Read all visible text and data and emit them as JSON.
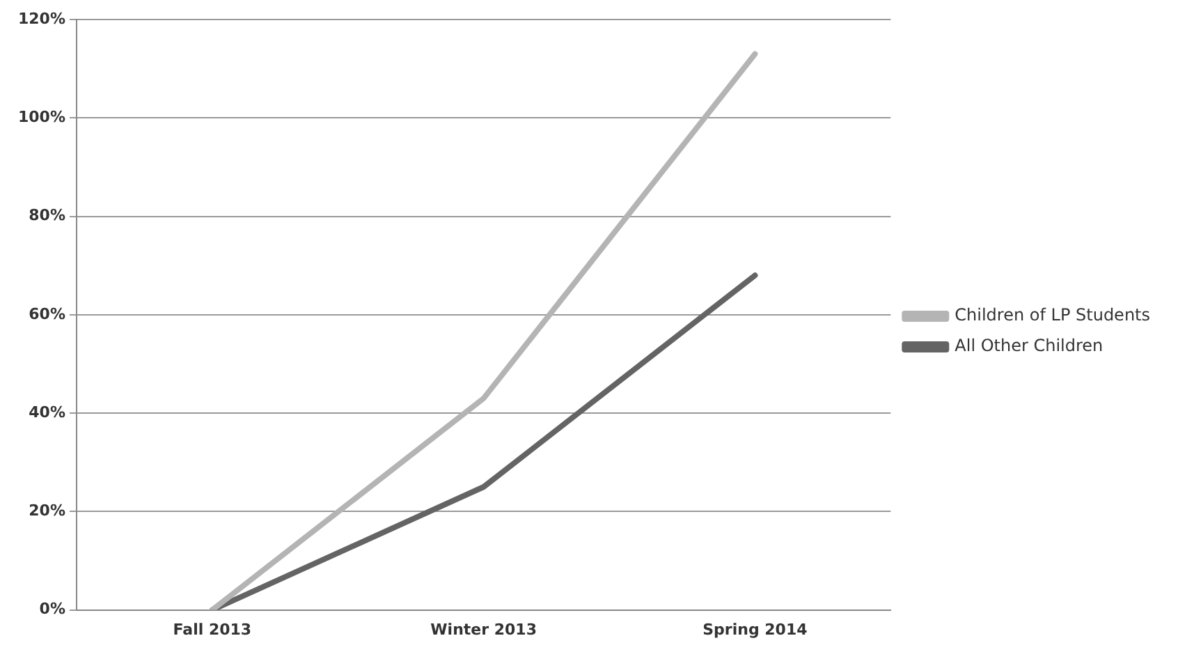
{
  "chart_data": {
    "type": "line",
    "categories": [
      "Fall 2013",
      "Winter 2013",
      "Spring 2014"
    ],
    "series": [
      {
        "name": "Children of LP Students",
        "color": "#b4b4b4",
        "values": [
          0,
          43,
          113
        ]
      },
      {
        "name": "All Other Children",
        "color": "#646464",
        "values": [
          0,
          25,
          68
        ]
      }
    ],
    "ylim": [
      0,
      120
    ],
    "yticks": [
      {
        "value": 0,
        "label": "0%"
      },
      {
        "value": 20,
        "label": "20%"
      },
      {
        "value": 40,
        "label": "40%"
      },
      {
        "value": 60,
        "label": "60%"
      },
      {
        "value": 80,
        "label": "80%"
      },
      {
        "value": 100,
        "label": "100%"
      },
      {
        "value": 120,
        "label": "120%"
      }
    ],
    "grid": "y",
    "legend": "right",
    "marker": "none",
    "line_style": "solid"
  }
}
